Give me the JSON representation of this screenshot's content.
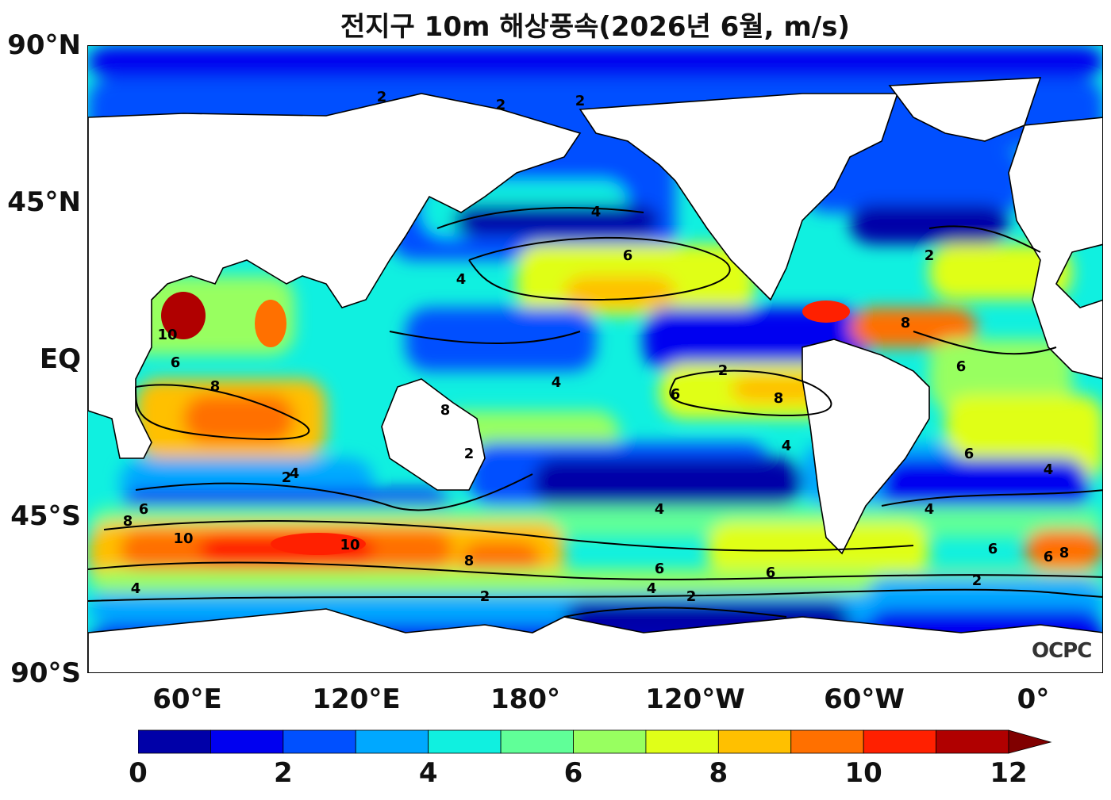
{
  "title": "전지구 10m 해상풍속(2026년 6월, m/s)",
  "watermark": "OCPC",
  "latitude_labels": [
    "90°N",
    "45°N",
    "EQ",
    "45°S",
    "90°S"
  ],
  "longitude_labels": [
    "60°E",
    "120°E",
    "180°",
    "120°W",
    "60°W",
    "0°"
  ],
  "colorbar": {
    "levels": [
      0,
      1,
      2,
      3,
      4,
      5,
      6,
      7,
      8,
      9,
      10,
      11,
      12
    ],
    "tick_labels": [
      "0",
      "2",
      "4",
      "6",
      "8",
      "10",
      "12"
    ],
    "colors": [
      "#0000a8",
      "#0000f0",
      "#0050ff",
      "#00a8ff",
      "#10f0e0",
      "#60ff98",
      "#98ff60",
      "#e0ff18",
      "#ffc000",
      "#ff7000",
      "#ff2000",
      "#b00000"
    ],
    "extend_color": "#800000",
    "unit": "m/s"
  },
  "contour_labels": [
    "2",
    "4",
    "6",
    "8",
    "10"
  ]
}
